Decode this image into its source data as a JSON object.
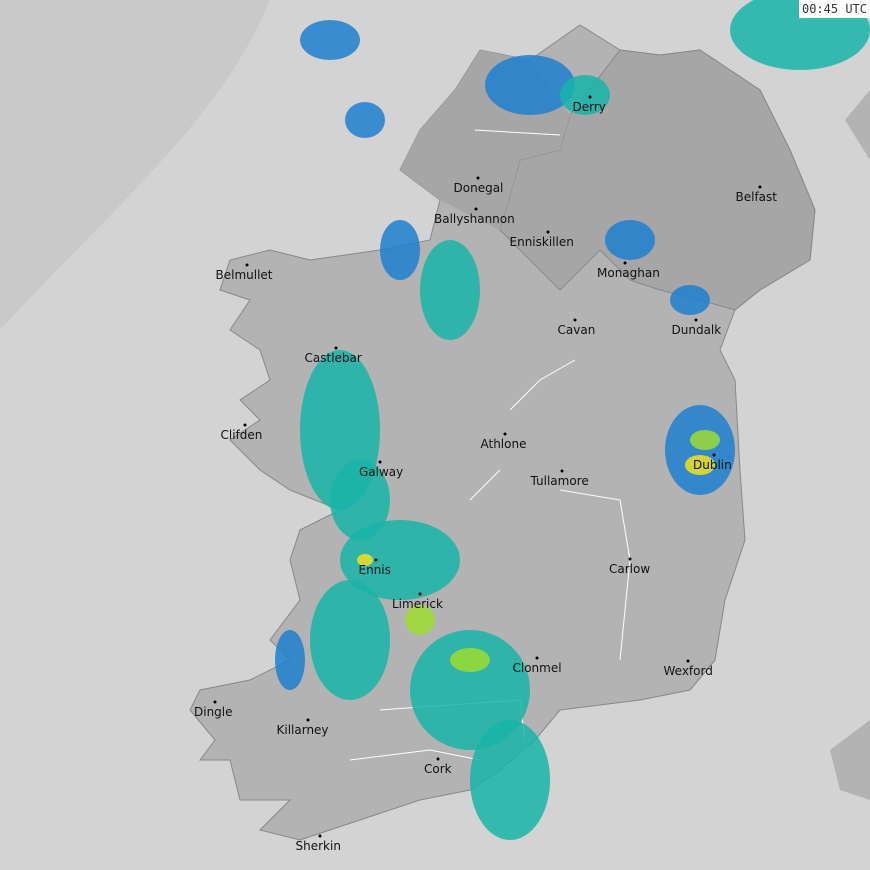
{
  "timestamp": "00:45 UTC",
  "colors": {
    "sea": "#d3d3d3",
    "sea_far": "#c9c9c9",
    "land": "#b3b3b3",
    "land_north": "#a6a6a6",
    "rain_light": "#1e7fd0",
    "rain_medium": "#18b4a8",
    "rain_heavy": "#9cdc30",
    "rain_intense": "#f0e020"
  },
  "cities": [
    {
      "name": "Derry"
    },
    {
      "name": "Donegal"
    },
    {
      "name": "Ballyshannon"
    },
    {
      "name": "Enniskillen"
    },
    {
      "name": "Belfast"
    },
    {
      "name": "Monaghan"
    },
    {
      "name": "Belmullet"
    },
    {
      "name": "Cavan"
    },
    {
      "name": "Dundalk"
    },
    {
      "name": "Castlebar"
    },
    {
      "name": "Clifden"
    },
    {
      "name": "Athlone"
    },
    {
      "name": "Tullamore"
    },
    {
      "name": "Dublin"
    },
    {
      "name": "Galway"
    },
    {
      "name": "Ennis"
    },
    {
      "name": "Carlow"
    },
    {
      "name": "Limerick"
    },
    {
      "name": "Clonmel"
    },
    {
      "name": "Wexford"
    },
    {
      "name": "Dingle"
    },
    {
      "name": "Killarney"
    },
    {
      "name": "Cork"
    },
    {
      "name": "Sherkin"
    }
  ]
}
